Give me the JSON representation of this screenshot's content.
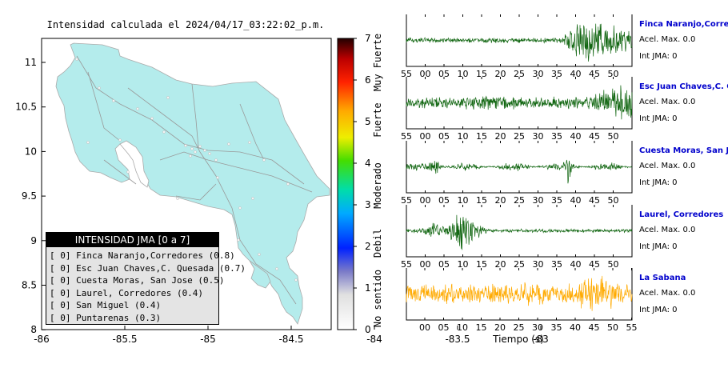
{
  "map": {
    "title": "Intensidad calculada el 2024/04/17_03:22:02_p.m.",
    "x_ticks": [
      "-86",
      "-85.5",
      "-85",
      "-84.5",
      "-84",
      "-83.5",
      "-83"
    ],
    "y_ticks": [
      "11",
      "10.5",
      "10",
      "9.5",
      "9",
      "8.5",
      "8"
    ]
  },
  "colorbar": {
    "ticks": [
      "0",
      "1",
      "2",
      "3",
      "4",
      "5",
      "6",
      "7"
    ],
    "labels": [
      "No sentido",
      "Debil",
      "Moderado",
      "Fuerte",
      "Muy Fuerte"
    ]
  },
  "legend": {
    "title": "INTENSIDAD JMA [0 a 7]",
    "rows": [
      "[ 0] Finca Naranjo,Corredores (0.8)",
      "[ 0] Esc Juan Chaves,C. Quesada (0.7)",
      "[ 0] Cuesta Moras, San Jose (0.5)",
      "[ 0] Laurel, Corredores (0.4)",
      "[ 0] San Miguel (0.4)",
      "[ 0] Puntarenas (0.3)"
    ]
  },
  "seismograms": {
    "xlabel": "Tiempo (s)",
    "stations": [
      {
        "name": "Finca Naranjo,Corredores",
        "accel": "Acel. Max. 0.0",
        "int": "Int JMA: 0",
        "color": "#116611",
        "ticks": [
          "55",
          "00",
          "05",
          "10",
          "15",
          "20",
          "25",
          "30",
          "35",
          "40",
          "45",
          "50"
        ]
      },
      {
        "name": "Esc Juan Chaves,C. Quesada",
        "accel": "Acel. Max. 0.0",
        "int": "Int JMA: 0",
        "color": "#116611",
        "ticks": [
          "55",
          "00",
          "05",
          "10",
          "15",
          "20",
          "25",
          "30",
          "35",
          "40",
          "45",
          "50"
        ]
      },
      {
        "name": "Cuesta Moras, San Jose",
        "accel": "Acel. Max. 0.0",
        "int": "Int JMA: 0",
        "color": "#116611",
        "ticks": [
          "55",
          "00",
          "05",
          "10",
          "15",
          "20",
          "25",
          "30",
          "35",
          "40",
          "45",
          "50"
        ]
      },
      {
        "name": "Laurel, Corredores",
        "accel": "Acel. Max. 0.0",
        "int": "Int JMA: 0",
        "color": "#116611",
        "ticks": [
          "55",
          "00",
          "05",
          "10",
          "15",
          "20",
          "25",
          "30",
          "35",
          "40",
          "45",
          "50"
        ]
      },
      {
        "name": "La Sabana",
        "accel": "Acel. Max. 0.0",
        "int": "Int JMA: 0",
        "color": "#ffaa00",
        "ticks": [
          "00",
          "05",
          "10",
          "15",
          "20",
          "25",
          "30",
          "35",
          "40",
          "45",
          "50",
          "55"
        ]
      }
    ]
  },
  "colors": {
    "land": "#b4ecec",
    "station_label": "#0000cc"
  }
}
